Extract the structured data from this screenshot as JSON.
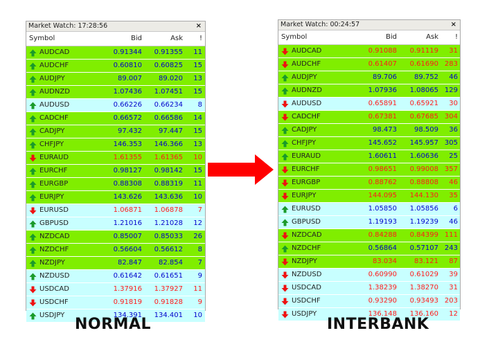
{
  "colors": {
    "green_bg": "#80ee00",
    "cyan_bg": "#c8ffff",
    "up_text": "#0000cc",
    "down_text": "#ff1a1a",
    "up_icon": "#1a9a2a",
    "down_icon": "#ee1111",
    "arrow": "#ff0000"
  },
  "header": {
    "symbol": "Symbol",
    "bid": "Bid",
    "ask": "Ask",
    "spread": "!"
  },
  "panels": [
    {
      "title": "Market Watch: 17:28:56",
      "close": "×",
      "caption": "NORMAL",
      "rows": [
        {
          "symbol": "AUDCAD",
          "bid": "0.91344",
          "ask": "0.91355",
          "spread": "11",
          "dir": "up",
          "bg": "green"
        },
        {
          "symbol": "AUDCHF",
          "bid": "0.60810",
          "ask": "0.60825",
          "spread": "15",
          "dir": "up",
          "bg": "green"
        },
        {
          "symbol": "AUDJPY",
          "bid": "89.007",
          "ask": "89.020",
          "spread": "13",
          "dir": "up",
          "bg": "green"
        },
        {
          "symbol": "AUDNZD",
          "bid": "1.07436",
          "ask": "1.07451",
          "spread": "15",
          "dir": "up",
          "bg": "green"
        },
        {
          "symbol": "AUDUSD",
          "bid": "0.66226",
          "ask": "0.66234",
          "spread": "8",
          "dir": "up",
          "bg": "cyan"
        },
        {
          "symbol": "CADCHF",
          "bid": "0.66572",
          "ask": "0.66586",
          "spread": "14",
          "dir": "up",
          "bg": "green"
        },
        {
          "symbol": "CADJPY",
          "bid": "97.432",
          "ask": "97.447",
          "spread": "15",
          "dir": "up",
          "bg": "green"
        },
        {
          "symbol": "CHFJPY",
          "bid": "146.353",
          "ask": "146.366",
          "spread": "13",
          "dir": "up",
          "bg": "green"
        },
        {
          "symbol": "EURAUD",
          "bid": "1.61355",
          "ask": "1.61365",
          "spread": "10",
          "dir": "down",
          "bg": "green"
        },
        {
          "symbol": "EURCHF",
          "bid": "0.98127",
          "ask": "0.98142",
          "spread": "15",
          "dir": "up",
          "bg": "green"
        },
        {
          "symbol": "EURGBP",
          "bid": "0.88308",
          "ask": "0.88319",
          "spread": "11",
          "dir": "up",
          "bg": "green"
        },
        {
          "symbol": "EURJPY",
          "bid": "143.626",
          "ask": "143.636",
          "spread": "10",
          "dir": "up",
          "bg": "green"
        },
        {
          "symbol": "EURUSD",
          "bid": "1.06871",
          "ask": "1.06878",
          "spread": "7",
          "dir": "down",
          "bg": "cyan"
        },
        {
          "symbol": "GBPUSD",
          "bid": "1.21016",
          "ask": "1.21028",
          "spread": "12",
          "dir": "up",
          "bg": "cyan"
        },
        {
          "symbol": "NZDCAD",
          "bid": "0.85007",
          "ask": "0.85033",
          "spread": "26",
          "dir": "up",
          "bg": "green"
        },
        {
          "symbol": "NZDCHF",
          "bid": "0.56604",
          "ask": "0.56612",
          "spread": "8",
          "dir": "up",
          "bg": "green"
        },
        {
          "symbol": "NZDJPY",
          "bid": "82.847",
          "ask": "82.854",
          "spread": "7",
          "dir": "up",
          "bg": "green"
        },
        {
          "symbol": "NZDUSD",
          "bid": "0.61642",
          "ask": "0.61651",
          "spread": "9",
          "dir": "up",
          "bg": "cyan"
        },
        {
          "symbol": "USDCAD",
          "bid": "1.37916",
          "ask": "1.37927",
          "spread": "11",
          "dir": "down",
          "bg": "cyan"
        },
        {
          "symbol": "USDCHF",
          "bid": "0.91819",
          "ask": "0.91828",
          "spread": "9",
          "dir": "down",
          "bg": "cyan"
        },
        {
          "symbol": "USDJPY",
          "bid": "134.391",
          "ask": "134.401",
          "spread": "10",
          "dir": "up",
          "bg": "cyan"
        }
      ]
    },
    {
      "title": "Market Watch: 00:24:57",
      "close": "×",
      "caption": "INTERBANK",
      "rows": [
        {
          "symbol": "AUDCAD",
          "bid": "0.91088",
          "ask": "0.91119",
          "spread": "31",
          "dir": "down",
          "bg": "green"
        },
        {
          "symbol": "AUDCHF",
          "bid": "0.61407",
          "ask": "0.61690",
          "spread": "283",
          "dir": "down",
          "bg": "green"
        },
        {
          "symbol": "AUDJPY",
          "bid": "89.706",
          "ask": "89.752",
          "spread": "46",
          "dir": "up",
          "bg": "green"
        },
        {
          "symbol": "AUDNZD",
          "bid": "1.07936",
          "ask": "1.08065",
          "spread": "129",
          "dir": "up",
          "bg": "green"
        },
        {
          "symbol": "AUDUSD",
          "bid": "0.65891",
          "ask": "0.65921",
          "spread": "30",
          "dir": "down",
          "bg": "cyan"
        },
        {
          "symbol": "CADCHF",
          "bid": "0.67381",
          "ask": "0.67685",
          "spread": "304",
          "dir": "down",
          "bg": "green"
        },
        {
          "symbol": "CADJPY",
          "bid": "98.473",
          "ask": "98.509",
          "spread": "36",
          "dir": "up",
          "bg": "green"
        },
        {
          "symbol": "CHFJPY",
          "bid": "145.652",
          "ask": "145.957",
          "spread": "305",
          "dir": "up",
          "bg": "green"
        },
        {
          "symbol": "EURAUD",
          "bid": "1.60611",
          "ask": "1.60636",
          "spread": "25",
          "dir": "up",
          "bg": "green"
        },
        {
          "symbol": "EURCHF",
          "bid": "0.98651",
          "ask": "0.99008",
          "spread": "357",
          "dir": "down",
          "bg": "green"
        },
        {
          "symbol": "EURGBP",
          "bid": "0.88762",
          "ask": "0.88808",
          "spread": "46",
          "dir": "down",
          "bg": "green"
        },
        {
          "symbol": "EURJPY",
          "bid": "144.095",
          "ask": "144.130",
          "spread": "35",
          "dir": "down",
          "bg": "green"
        },
        {
          "symbol": "EURUSD",
          "bid": "1.05850",
          "ask": "1.05856",
          "spread": "6",
          "dir": "up",
          "bg": "cyan"
        },
        {
          "symbol": "GBPUSD",
          "bid": "1.19193",
          "ask": "1.19239",
          "spread": "46",
          "dir": "up",
          "bg": "cyan"
        },
        {
          "symbol": "NZDCAD",
          "bid": "0.84288",
          "ask": "0.84399",
          "spread": "111",
          "dir": "down",
          "bg": "green"
        },
        {
          "symbol": "NZDCHF",
          "bid": "0.56864",
          "ask": "0.57107",
          "spread": "243",
          "dir": "up",
          "bg": "green"
        },
        {
          "symbol": "NZDJPY",
          "bid": "83.034",
          "ask": "83.121",
          "spread": "87",
          "dir": "down",
          "bg": "green"
        },
        {
          "symbol": "NZDUSD",
          "bid": "0.60990",
          "ask": "0.61029",
          "spread": "39",
          "dir": "down",
          "bg": "cyan"
        },
        {
          "symbol": "USDCAD",
          "bid": "1.38239",
          "ask": "1.38270",
          "spread": "31",
          "dir": "down",
          "bg": "cyan"
        },
        {
          "symbol": "USDCHF",
          "bid": "0.93290",
          "ask": "0.93493",
          "spread": "203",
          "dir": "down",
          "bg": "cyan"
        },
        {
          "symbol": "USDJPY",
          "bid": "136.148",
          "ask": "136.160",
          "spread": "12",
          "dir": "down",
          "bg": "cyan"
        }
      ]
    }
  ]
}
